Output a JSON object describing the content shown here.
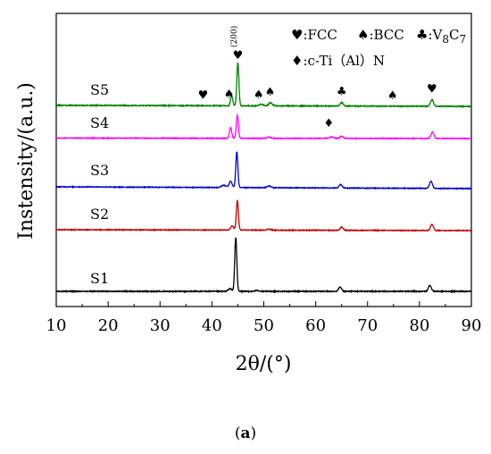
{
  "chart_data": {
    "type": "line",
    "xlabel": "2θ/(°)",
    "ylabel": "Instensity/(a.u.)",
    "xlim": [
      10,
      90
    ],
    "xticks": [
      10,
      20,
      30,
      40,
      50,
      60,
      70,
      80,
      90
    ],
    "grid": false,
    "caption_open": "(",
    "caption_letter": "a",
    "caption_close": ")",
    "peak_note": "(200)",
    "legend": [
      {
        "symbol": "♥",
        "label": ":FCC"
      },
      {
        "symbol": "♠",
        "label": ":BCC"
      },
      {
        "symbol": "♣",
        "label": ":V",
        "sub1": "8",
        "mid": "C",
        "sub2": "7"
      },
      {
        "symbol": "♦",
        "label": ":c-Ti（Al）N"
      }
    ],
    "series": [
      {
        "name": "S1",
        "color": "#000000",
        "baseline": 0.0,
        "noise": 0.9,
        "peaks": [
          [
            43.5,
            2.5,
            0.5
          ],
          [
            44.6,
            54,
            0.28
          ],
          [
            48.7,
            1.0,
            0.5
          ],
          [
            64.7,
            4.5,
            0.4
          ],
          [
            82.0,
            6.0,
            0.4
          ]
        ]
      },
      {
        "name": "S2",
        "color": "#c00000",
        "baseline": 1.0,
        "noise": 0.8,
        "peaks": [
          [
            43.9,
            4.5,
            0.4
          ],
          [
            44.9,
            33,
            0.28
          ],
          [
            51.0,
            1.2,
            0.5
          ],
          [
            65.0,
            3.5,
            0.4
          ],
          [
            82.4,
            7.0,
            0.4
          ]
        ]
      },
      {
        "name": "S3",
        "color": "#0000c0",
        "baseline": 2.0,
        "noise": 0.8,
        "peaks": [
          [
            42.3,
            2.5,
            0.6
          ],
          [
            43.6,
            7.0,
            0.4
          ],
          [
            44.8,
            40,
            0.28
          ],
          [
            51.0,
            2.0,
            0.5
          ],
          [
            64.8,
            4.0,
            0.4
          ],
          [
            82.2,
            8.0,
            0.4
          ]
        ]
      },
      {
        "name": "S4",
        "color": "#ff00ff",
        "baseline": 0.5,
        "noise": 0.8,
        "peaks": [
          [
            43.6,
            12,
            0.3
          ],
          [
            44.9,
            26,
            0.28
          ],
          [
            51.0,
            1.5,
            0.5
          ],
          [
            63.0,
            1.5,
            0.6
          ],
          [
            65.0,
            2.5,
            0.4
          ],
          [
            82.5,
            7.0,
            0.4
          ]
        ]
      },
      {
        "name": "S5",
        "color": "#008000",
        "baseline": 1.0,
        "noise": 0.8,
        "peaks": [
          [
            43.8,
            10,
            0.3
          ],
          [
            45.0,
            42,
            0.28
          ],
          [
            49.5,
            1.5,
            0.5
          ],
          [
            51.3,
            3.0,
            0.5
          ],
          [
            65.0,
            3.5,
            0.4
          ],
          [
            82.4,
            6.5,
            0.4
          ]
        ]
      }
    ],
    "annotations": [
      {
        "symbol": "♥",
        "x": 38.3,
        "series": "S5"
      },
      {
        "symbol": "♠",
        "x": 43.3,
        "series": "S5"
      },
      {
        "symbol": "♥",
        "x": 45.0,
        "series": "S5"
      },
      {
        "symbol": "♠",
        "x": 49.0,
        "series": "S5"
      },
      {
        "symbol": "♠",
        "x": 51.2,
        "series": "S5"
      },
      {
        "symbol": "♣",
        "x": 65.0,
        "series": "S5"
      },
      {
        "symbol": "♠",
        "x": 74.8,
        "series": "S5"
      },
      {
        "symbol": "♥",
        "x": 82.4,
        "series": "S5"
      },
      {
        "symbol": "♦",
        "x": 62.5,
        "series": "S4"
      }
    ]
  }
}
